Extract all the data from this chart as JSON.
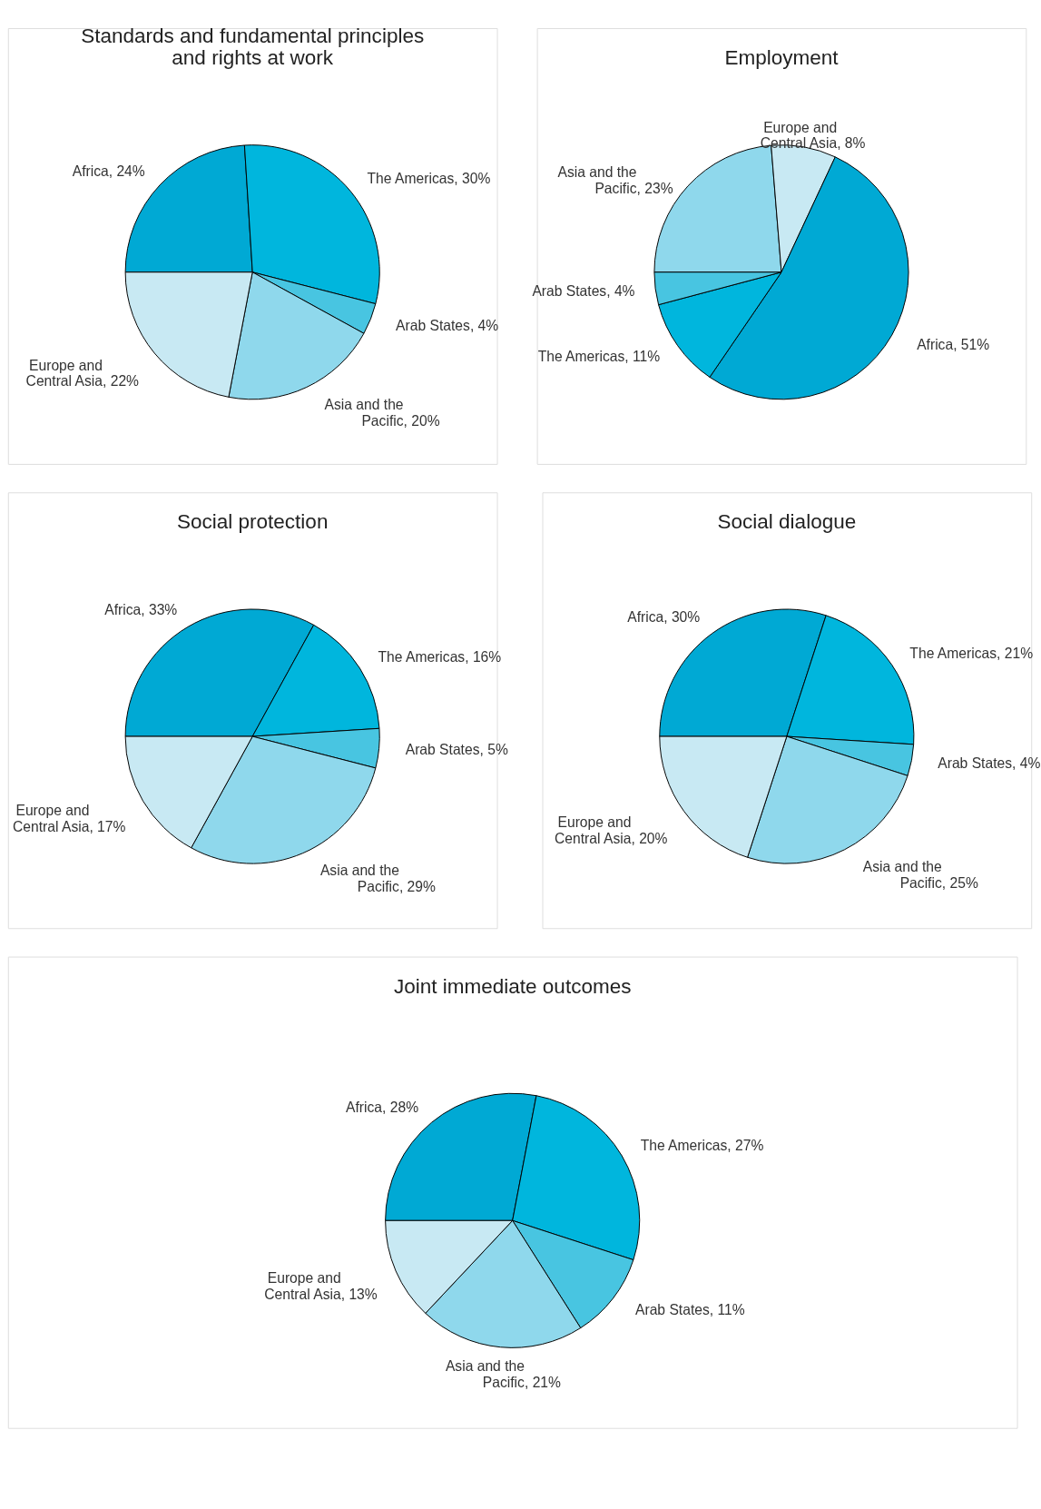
{
  "chart_data": [
    {
      "type": "pie",
      "title": "Standards and fundamental principles\nand rights at work",
      "categories": [
        "Africa",
        "The Americas",
        "Arab States",
        "Asia and the Pacific",
        "Europe and Central Asia"
      ],
      "values": [
        24,
        30,
        4,
        20,
        22
      ],
      "colors": [
        "#00a9d4",
        "#00b6dd",
        "#48c5e1",
        "#8fd8ec",
        "#c8e9f3"
      ],
      "value_labels": [
        ", 24%",
        ", 30%",
        ", 4%",
        ", 20%",
        ", 22%"
      ]
    },
    {
      "type": "pie",
      "title": "Employment",
      "categories": [
        "Asia and the Pacific",
        "Europe and Central Asia",
        "Africa",
        "The Americas",
        "Arab States"
      ],
      "values": [
        23,
        8,
        51,
        11,
        4
      ],
      "colors": [
        "#8fd8ec",
        "#c8e9f3",
        "#00a9d4",
        "#00b6dd",
        "#48c5e1"
      ],
      "value_labels": [
        ", 23%",
        ", 8%",
        ", 51%",
        ", 11%",
        ", 4%"
      ]
    },
    {
      "type": "pie",
      "title": "Social protection",
      "categories": [
        "Africa",
        "The Americas",
        "Arab States",
        "Asia and the Pacific",
        "Europe and Central Asia"
      ],
      "values": [
        33,
        16,
        5,
        29,
        17
      ],
      "colors": [
        "#00a9d4",
        "#00b6dd",
        "#48c5e1",
        "#8fd8ec",
        "#c8e9f3"
      ],
      "value_labels": [
        ", 33%",
        ", 16%",
        ", 5%",
        ", 29%",
        ", 17%"
      ]
    },
    {
      "type": "pie",
      "title": "Social dialogue",
      "categories": [
        "Africa",
        "The Americas",
        "Arab States",
        "Asia and the Pacific",
        "Europe and Central Asia"
      ],
      "values": [
        30,
        21,
        4,
        25,
        20
      ],
      "colors": [
        "#00a9d4",
        "#00b6dd",
        "#48c5e1",
        "#8fd8ec",
        "#c8e9f3"
      ],
      "value_labels": [
        ", 30%",
        ", 21%",
        ", 4%",
        ", 25%",
        ", 20%"
      ]
    },
    {
      "type": "pie",
      "title": "Joint immediate outcomes",
      "categories": [
        "Africa",
        "The Americas",
        "Arab States",
        "Asia and the Pacific",
        "Europe and Central Asia"
      ],
      "values": [
        28,
        27,
        11,
        21,
        13
      ],
      "colors": [
        "#00a9d4",
        "#00b6dd",
        "#48c5e1",
        "#8fd8ec",
        "#c8e9f3"
      ],
      "value_labels": [
        ", 28%",
        ", 27%",
        ", 11%",
        ", 21%",
        ", 13%"
      ]
    }
  ]
}
